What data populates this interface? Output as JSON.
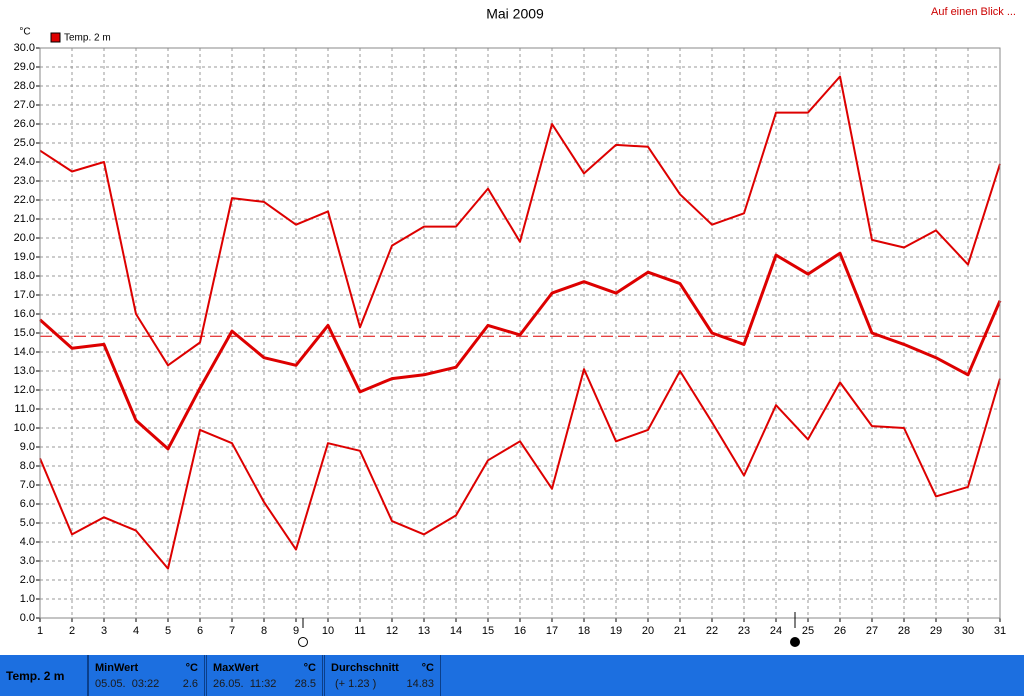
{
  "chart_data": {
    "type": "line",
    "title": "Mai 2009",
    "link": "Auf einen Blick ...",
    "y_label": "°C",
    "legend": {
      "label": "Temp. 2 m",
      "color": "#dd0000"
    },
    "x": [
      1,
      2,
      3,
      4,
      5,
      6,
      7,
      8,
      9,
      10,
      11,
      12,
      13,
      14,
      15,
      16,
      17,
      18,
      19,
      20,
      21,
      22,
      23,
      24,
      25,
      26,
      27,
      28,
      29,
      30,
      31
    ],
    "xlim": [
      1,
      31
    ],
    "xticks": [
      1,
      2,
      3,
      4,
      5,
      6,
      7,
      8,
      9,
      10,
      11,
      12,
      13,
      14,
      15,
      16,
      17,
      18,
      19,
      20,
      21,
      22,
      23,
      24,
      25,
      26,
      27,
      28,
      29,
      30,
      31
    ],
    "ylim": [
      0,
      30
    ],
    "yticks": [
      {
        "value": 0,
        "label": "0.0"
      },
      {
        "value": 1,
        "label": "1.0"
      },
      {
        "value": 2,
        "label": "2.0"
      },
      {
        "value": 3,
        "label": "3.0"
      },
      {
        "value": 4,
        "label": "4.0"
      },
      {
        "value": 5,
        "label": "5.0"
      },
      {
        "value": 6,
        "label": "6.0"
      },
      {
        "value": 7,
        "label": "7.0"
      },
      {
        "value": 8,
        "label": "8.0"
      },
      {
        "value": 9,
        "label": "9.0"
      },
      {
        "value": 10,
        "label": "10.0"
      },
      {
        "value": 11,
        "label": "11.0"
      },
      {
        "value": 12,
        "label": "12.0"
      },
      {
        "value": 13,
        "label": "13.0"
      },
      {
        "value": 14,
        "label": "14.0"
      },
      {
        "value": 15,
        "label": "15.0"
      },
      {
        "value": 16,
        "label": "16.0"
      },
      {
        "value": 17,
        "label": "17.0"
      },
      {
        "value": 18,
        "label": "18.0"
      },
      {
        "value": 19,
        "label": "19.0"
      },
      {
        "value": 20,
        "label": "20.0"
      },
      {
        "value": 21,
        "label": "21.0"
      },
      {
        "value": 22,
        "label": "22.0"
      },
      {
        "value": 23,
        "label": "23.0"
      },
      {
        "value": 24,
        "label": "24.0"
      },
      {
        "value": 25,
        "label": "25.0"
      },
      {
        "value": 26,
        "label": "26.0"
      },
      {
        "value": 27,
        "label": "27.0"
      },
      {
        "value": 28,
        "label": "28.0"
      },
      {
        "value": 29,
        "label": "29.0"
      },
      {
        "value": 30,
        "label": "30.0"
      }
    ],
    "grid": true,
    "series": [
      {
        "color": "#dd0000",
        "line_width": 2,
        "values": [
          24.6,
          23.5,
          24.0,
          16.0,
          13.3,
          14.5,
          22.1,
          21.9,
          20.7,
          21.4,
          15.3,
          19.6,
          20.6,
          20.6,
          22.6,
          19.8,
          26.0,
          23.4,
          24.9,
          24.8,
          22.3,
          20.7,
          21.3,
          26.6,
          26.6,
          28.5,
          19.9,
          19.5,
          20.4,
          18.6,
          23.9
        ]
      },
      {
        "color": "#dd0000",
        "line_width": 3,
        "values": [
          15.7,
          14.2,
          14.4,
          10.4,
          8.9,
          12.1,
          15.1,
          13.7,
          13.3,
          15.4,
          11.9,
          12.6,
          12.8,
          13.2,
          15.4,
          14.9,
          17.1,
          17.7,
          17.1,
          18.2,
          17.6,
          15.0,
          14.4,
          19.1,
          18.1,
          19.2,
          15.0,
          14.4,
          13.7,
          12.8,
          16.7
        ]
      },
      {
        "color": "#dd0000",
        "line_width": 2,
        "values": [
          8.4,
          4.4,
          5.3,
          4.6,
          2.6,
          9.9,
          9.2,
          6.1,
          3.6,
          9.2,
          8.8,
          5.1,
          4.4,
          5.4,
          8.3,
          9.3,
          6.8,
          13.1,
          9.3,
          9.9,
          13.0,
          10.3,
          7.5,
          11.2,
          9.4,
          12.4,
          10.1,
          10.0,
          6.4,
          6.9,
          12.6
        ]
      }
    ],
    "stats": {
      "name": "Temp. 2 m",
      "min": {
        "label": "MinWert",
        "unit": "°C",
        "time": "05.05.  03:22",
        "value": 2.6
      },
      "max": {
        "label": "MaxWert",
        "unit": "°C",
        "time": "26.05.  11:32",
        "value": 28.5
      },
      "average": {
        "label": "Durchschnitt",
        "unit": "°C",
        "note": "(+ 1.23 )",
        "value": 14.83
      }
    }
  }
}
